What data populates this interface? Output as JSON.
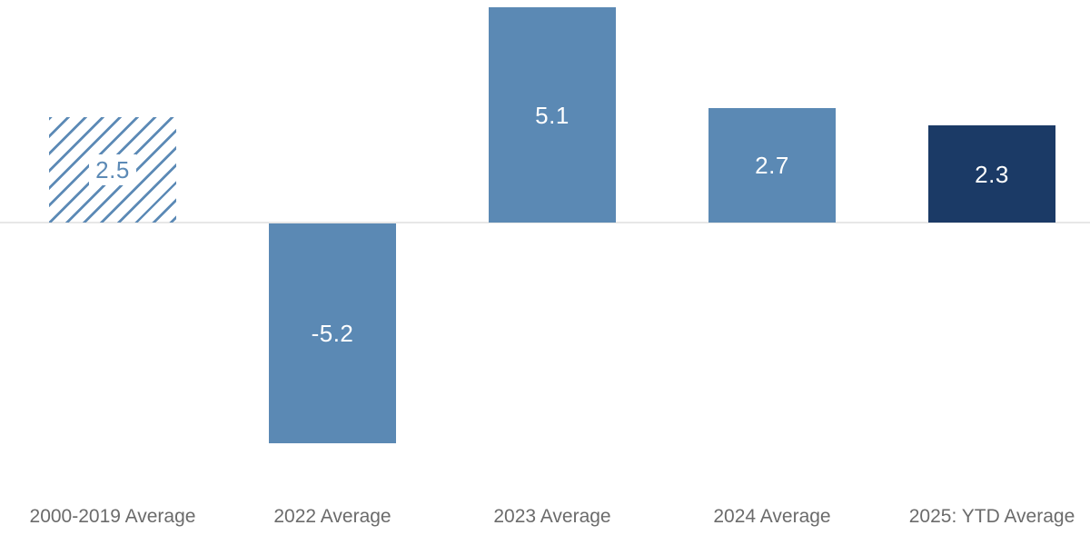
{
  "chart_data": {
    "type": "bar",
    "title": "",
    "xlabel": "",
    "ylabel": "",
    "categories": [
      "2000-2019 Average",
      "2022 Average",
      "2023 Average",
      "2024 Average",
      "2025: YTD Average"
    ],
    "values": [
      2.5,
      -5.2,
      5.1,
      2.7,
      2.3
    ],
    "value_labels": [
      "2.5",
      "-5.2",
      "5.1",
      "2.7",
      "2.3"
    ],
    "bar_styles": [
      "hatched",
      "solid",
      "solid",
      "solid",
      "dark"
    ],
    "baseline": 0,
    "ylim": [
      -5.5,
      5.2
    ],
    "grid": "off",
    "legend": "none",
    "colors": {
      "solid": "#5b89b4",
      "dark": "#1b3a66",
      "hatch_stroke": "#5c8ab6",
      "axis_line": "#e7e7e7",
      "category_label": "#6b6b6b",
      "value_label": "#ffffff",
      "background": "#ffffff"
    }
  }
}
